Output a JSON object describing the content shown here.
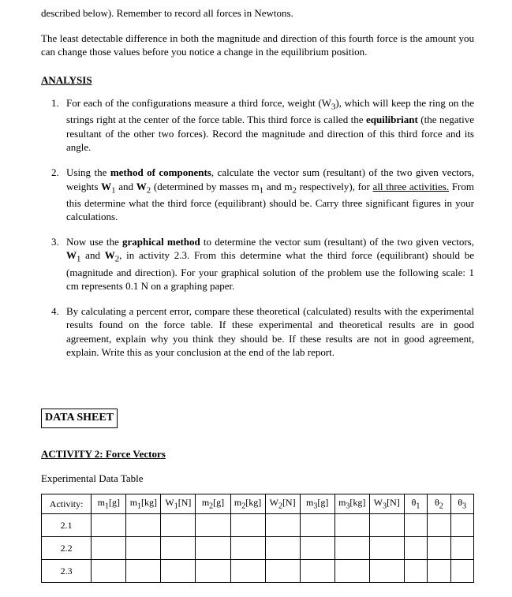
{
  "intro": {
    "line1": "described below).  Remember to record all forces in Newtons.",
    "para2": "The least detectable difference in both the magnitude and direction of this fourth force is the amount you can change those values before you notice a change in the equilibrium position."
  },
  "analysis": {
    "heading": "ANALYSIS",
    "items": [
      {
        "pre": "For each of the configurations measure a third force, weight (W",
        "sub1": "3",
        "mid1": "), which will keep the ring on the strings right at the center of the force table. This third force is called the ",
        "bold1": "equilibriant",
        "post": " (the negative resultant of the other two forces). Record the magnitude and direction of this third force and its angle."
      },
      {
        "pre": "Using the ",
        "bold1": "method of components",
        "mid1": ", calculate the vector sum (resultant) of the two given vectors, weights ",
        "bold2": "W",
        "sub1": "1",
        "mid2": " and ",
        "bold3": "W",
        "sub2": "2",
        "mid3": " (determined by masses m",
        "sub3": "1",
        "mid4": " and m",
        "sub4": "2",
        "mid5": " respectively), for ",
        "uline": "all three activities.",
        "post": " From this determine what the third force (equilibrant) should be. Carry three significant figures in your calculations."
      },
      {
        "pre": "Now use the ",
        "bold1": "graphical method",
        "mid1": " to determine the vector sum (resultant) of the two given vectors, ",
        "bold2": "W",
        "sub1": "1",
        "mid2": " and ",
        "bold3": "W",
        "sub2": "2",
        "mid3": ", in activity 2.3. From this determine what the third force (equilibrant) should be (magnitude and direction). For your graphical solution of the problem use the following scale: 1 cm represents 0.1 N on a graphing paper."
      },
      {
        "text": "By calculating a percent error, compare these theoretical (calculated) results with the experimental results found on the force table.  If these experimental and theoretical results are in good agreement, explain why you think they should be. If these results are not in good agreement, explain. Write this as your conclusion at the end of the lab report."
      }
    ]
  },
  "datasheet": {
    "heading": "DATA SHEET",
    "activity_heading": "ACTIVITY 2: Force Vectors",
    "table_caption": "Experimental Data Table",
    "columns": {
      "activity": "Activity:",
      "m1g_a": "m",
      "m1g_s": "1",
      "m1g_b": "[g]",
      "m1kg_a": "m",
      "m1kg_s": "1",
      "m1kg_b": "[kg]",
      "w1_a": "W",
      "w1_s": "1",
      "w1_b": "[N]",
      "m2g_a": "m",
      "m2g_s": "2",
      "m2g_b": "[g]",
      "m2kg_a": "m",
      "m2kg_s": "2",
      "m2kg_b": "[kg]",
      "w2_a": "W",
      "w2_s": "2",
      "w2_b": "[N]",
      "m3g_a": "m",
      "m3g_s": "3",
      "m3g_b": "[g]",
      "m3kg_a": "m",
      "m3kg_s": "3",
      "m3kg_b": "[kg]",
      "w3_a": "W",
      "w3_s": "3",
      "w3_b": "[N]",
      "t1_a": "θ",
      "t1_s": "1",
      "t2_a": "θ",
      "t2_s": "2",
      "t3_a": "θ",
      "t3_s": "3"
    },
    "rows": [
      "2.1",
      "2.2",
      "2.3"
    ]
  }
}
